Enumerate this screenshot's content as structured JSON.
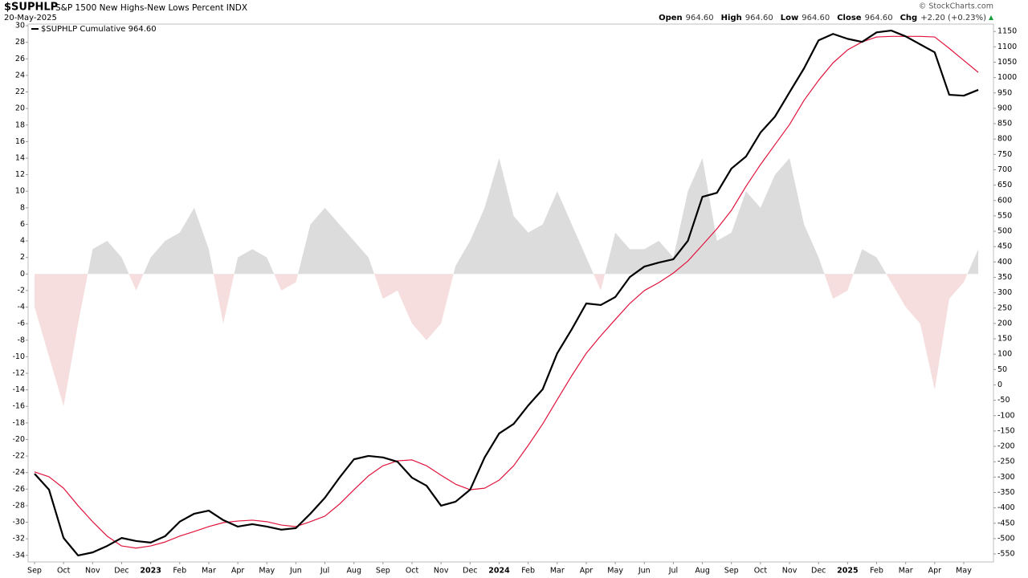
{
  "chart_data": {
    "type": "line",
    "title": "$SUPHLP",
    "subtitle": "S&P 1500 New Highs-New Lows Percent INDX",
    "date": "20-May-2025",
    "credit": "© StockCharts.com",
    "quote": [
      {
        "label": "Open",
        "value": "964.60"
      },
      {
        "label": "High",
        "value": "964.60"
      },
      {
        "label": "Low",
        "value": "964.60"
      },
      {
        "label": "Close",
        "value": "964.60"
      },
      {
        "label": "Chg",
        "value": "+2.20 (+0.23%)"
      }
    ],
    "categories": [
      "Sep",
      null,
      "Oct",
      null,
      "Nov",
      null,
      "Dec",
      null,
      "2023",
      null,
      "Feb",
      null,
      "Mar",
      null,
      "Apr",
      null,
      "May",
      null,
      "Jun",
      null,
      "Jul",
      null,
      "Aug",
      null,
      "Sep",
      null,
      "Oct",
      null,
      "Nov",
      null,
      "Dec",
      null,
      "2024",
      null,
      "Feb",
      null,
      "Mar",
      null,
      "Apr",
      null,
      "May",
      null,
      "Jun",
      null,
      "Jul",
      null,
      "Aug",
      null,
      "Sep",
      null,
      "Oct",
      null,
      "Nov",
      null,
      "Dec",
      null,
      "2025",
      null,
      "Feb",
      null,
      "Mar",
      null,
      "Apr",
      null,
      "May",
      null
    ],
    "ylim": [
      -34.8,
      30.2
    ],
    "yticks": [
      -34,
      -32,
      -30,
      -28,
      -26,
      -24,
      -22,
      -20,
      -18,
      -16,
      -14,
      -12,
      -10,
      -8,
      -6,
      -4,
      -2,
      0,
      2,
      4,
      6,
      8,
      10,
      12,
      14,
      16,
      18,
      20,
      22,
      24,
      26,
      28,
      30
    ],
    "y2lim": [
      -576,
      1174
    ],
    "y2ticks": [
      -550,
      -500,
      -450,
      -400,
      -350,
      -300,
      -250,
      -200,
      -150,
      -100,
      -50,
      0,
      50,
      100,
      150,
      200,
      250,
      300,
      350,
      400,
      450,
      500,
      550,
      600,
      650,
      700,
      750,
      800,
      850,
      900,
      950,
      1000,
      1050,
      1100,
      1150
    ],
    "grid": false,
    "legend": "top-left",
    "series": [
      {
        "type": "area",
        "color": "#dcdcdc",
        "negative_color": "#f6dede",
        "values": [
          -4,
          -10,
          -16,
          -6,
          3,
          4,
          2,
          -2,
          2,
          4,
          5,
          8,
          3,
          -6,
          2,
          3,
          2,
          -2,
          -1,
          6,
          8,
          6,
          4,
          2,
          -3,
          -2,
          -6,
          -8,
          -6,
          1,
          4,
          8,
          14,
          7,
          5,
          6,
          10,
          6,
          2,
          -2,
          5,
          3,
          3,
          4,
          2,
          10,
          14,
          4,
          5,
          10,
          8,
          12,
          14,
          6,
          2,
          -3,
          -2,
          3,
          2,
          -1,
          -4,
          -6,
          -14,
          -3,
          -1,
          3
        ]
      },
      {
        "type": "line",
        "axis": "y2",
        "color": "#e0143c",
        "values": [
          -283,
          -299,
          -336,
          -393,
          -445,
          -492,
          -524,
          -531,
          -524,
          -511,
          -492,
          -477,
          -461,
          -448,
          -443,
          -440,
          -445,
          -456,
          -461,
          -445,
          -427,
          -388,
          -341,
          -296,
          -263,
          -247,
          -244,
          -263,
          -294,
          -323,
          -341,
          -336,
          -310,
          -263,
          -197,
          -127,
          -48,
          30,
          103,
          160,
          213,
          265,
          307,
          333,
          364,
          403,
          455,
          508,
          568,
          646,
          717,
          782,
          847,
          926,
          991,
          1048,
          1090,
          1116,
          1132,
          1134,
          1134,
          1134,
          1132,
          1095,
          1056,
          1017
        ]
      },
      {
        "type": "line",
        "axis": "y2",
        "name": "$SUPHLP Cumulative 964.60",
        "color": "#000000",
        "values": [
          -289,
          -341,
          -498,
          -555,
          -545,
          -524,
          -498,
          -508,
          -513,
          -492,
          -445,
          -419,
          -409,
          -440,
          -461,
          -453,
          -461,
          -471,
          -466,
          -419,
          -367,
          -302,
          -242,
          -231,
          -236,
          -250,
          -302,
          -328,
          -393,
          -380,
          -341,
          -236,
          -158,
          -127,
          -67,
          -14,
          103,
          181,
          265,
          260,
          286,
          351,
          385,
          398,
          409,
          469,
          612,
          625,
          704,
          743,
          821,
          873,
          952,
          1030,
          1121,
          1142,
          1126,
          1116,
          1147,
          1153,
          1134,
          1108,
          1082,
          944,
          941,
          960
        ]
      }
    ]
  }
}
